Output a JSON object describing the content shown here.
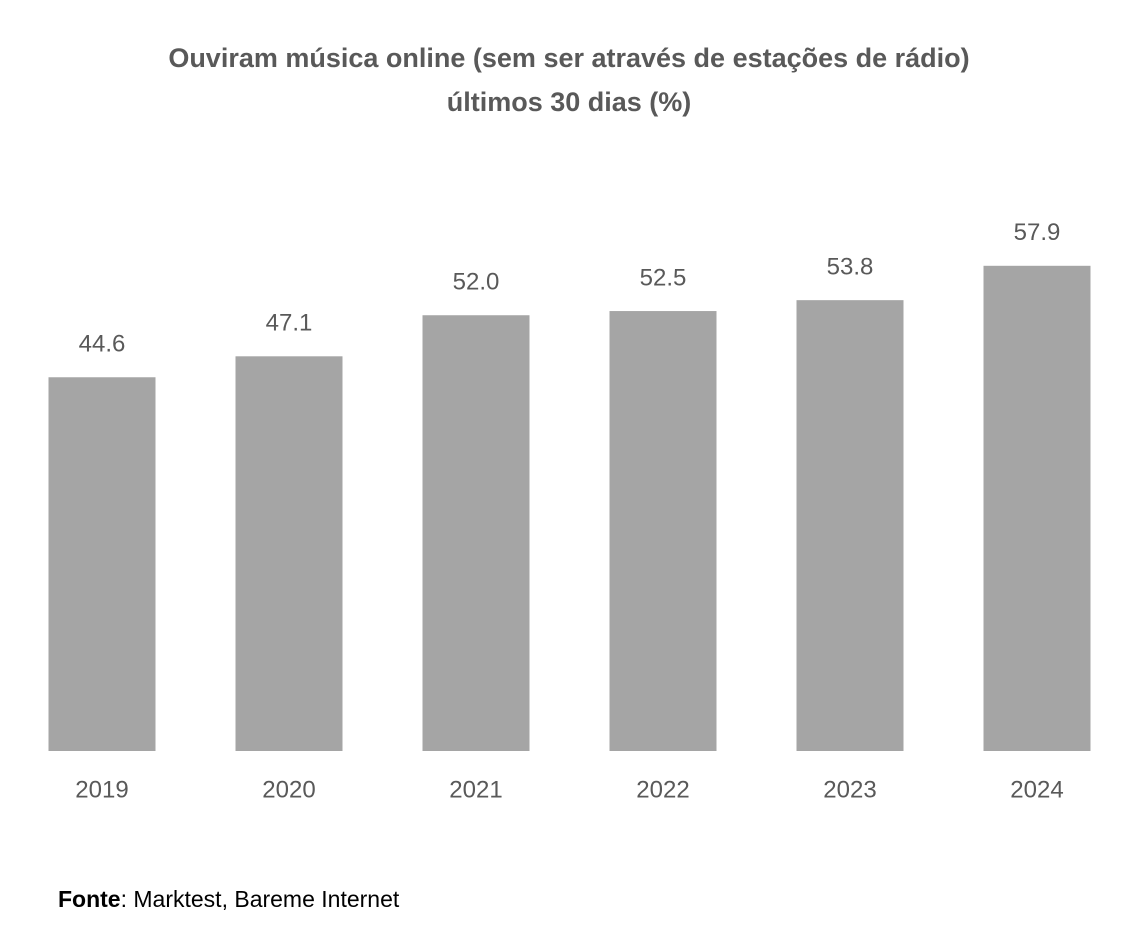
{
  "chart_data": {
    "type": "bar",
    "title": [
      "Ouviram música online (sem ser através de estações de rádio)",
      "últimos 30 dias (%)"
    ],
    "categories": [
      "2019",
      "2020",
      "2021",
      "2022",
      "2023",
      "2024"
    ],
    "values": [
      44.6,
      47.1,
      52.0,
      52.5,
      53.8,
      57.9
    ],
    "value_labels": [
      "44.6",
      "47.1",
      "52.0",
      "52.5",
      "53.8",
      "57.9"
    ],
    "color": "#a5a5a5",
    "source": {
      "label": "Fonte",
      "text": ": Marktest, Bareme Internet"
    }
  }
}
